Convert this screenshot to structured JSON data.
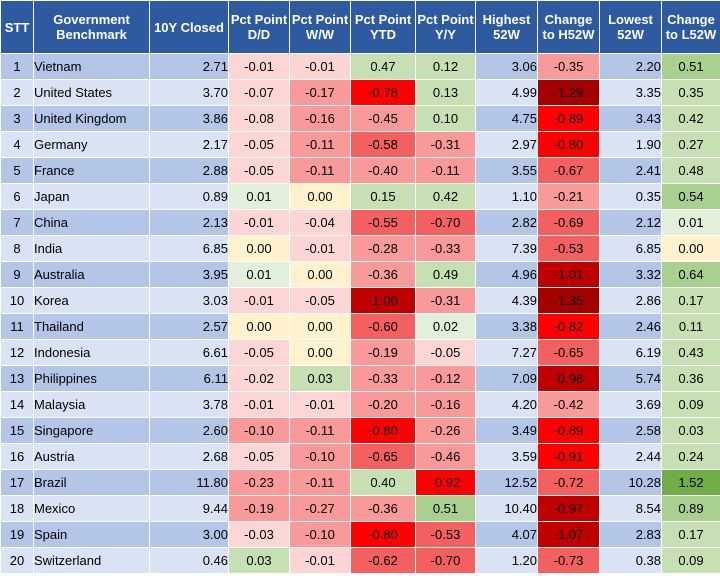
{
  "columns": [
    "STT",
    "Government Benchmark",
    "10Y Closed",
    "Pct Point D/D",
    "Pct Point W/W",
    "Pct Point YTD",
    "Pct Point Y/Y",
    "Highest 52W",
    "Change to H52W",
    "Lowest 52W",
    "Change to L52W"
  ],
  "rows": [
    {
      "stt": "1",
      "name": "Vietnam",
      "closed": "2.71",
      "dd": "-0.01",
      "ww": "-0.01",
      "ytd": "0.47",
      "yy": "0.12",
      "h52": "3.06",
      "ch52": "-0.35",
      "l52": "2.20",
      "cl52": "0.51"
    },
    {
      "stt": "2",
      "name": "United States",
      "closed": "3.70",
      "dd": "-0.07",
      "ww": "-0.17",
      "ytd": "-0.78",
      "yy": "0.13",
      "h52": "4.99",
      "ch52": "-1.29",
      "l52": "3.35",
      "cl52": "0.35"
    },
    {
      "stt": "3",
      "name": "United Kingdom",
      "closed": "3.86",
      "dd": "-0.08",
      "ww": "-0.16",
      "ytd": "-0.45",
      "yy": "0.10",
      "h52": "4.75",
      "ch52": "-0.89",
      "l52": "3.43",
      "cl52": "0.42"
    },
    {
      "stt": "4",
      "name": "Germany",
      "closed": "2.17",
      "dd": "-0.05",
      "ww": "-0.11",
      "ytd": "-0.58",
      "yy": "-0.31",
      "h52": "2.97",
      "ch52": "-0.80",
      "l52": "1.90",
      "cl52": "0.27"
    },
    {
      "stt": "5",
      "name": "France",
      "closed": "2.88",
      "dd": "-0.05",
      "ww": "-0.11",
      "ytd": "-0.40",
      "yy": "-0.11",
      "h52": "3.55",
      "ch52": "-0.67",
      "l52": "2.41",
      "cl52": "0.48"
    },
    {
      "stt": "6",
      "name": "Japan",
      "closed": "0.89",
      "dd": "0.01",
      "ww": "0.00",
      "ytd": "0.15",
      "yy": "0.42",
      "h52": "1.10",
      "ch52": "-0.21",
      "l52": "0.35",
      "cl52": "0.54"
    },
    {
      "stt": "7",
      "name": "China",
      "closed": "2.13",
      "dd": "-0.01",
      "ww": "-0.04",
      "ytd": "-0.55",
      "yy": "-0.70",
      "h52": "2.82",
      "ch52": "-0.69",
      "l52": "2.12",
      "cl52": "0.01"
    },
    {
      "stt": "8",
      "name": "India",
      "closed": "6.85",
      "dd": "0.00",
      "ww": "-0.01",
      "ytd": "-0.28",
      "yy": "-0.33",
      "h52": "7.39",
      "ch52": "-0.53",
      "l52": "6.85",
      "cl52": "0.00"
    },
    {
      "stt": "9",
      "name": "Australia",
      "closed": "3.95",
      "dd": "0.01",
      "ww": "0.00",
      "ytd": "-0.36",
      "yy": "0.49",
      "h52": "4.96",
      "ch52": "-1.01",
      "l52": "3.32",
      "cl52": "0.64"
    },
    {
      "stt": "10",
      "name": "Korea",
      "closed": "3.03",
      "dd": "-0.01",
      "ww": "-0.05",
      "ytd": "-1.00",
      "yy": "-0.31",
      "h52": "4.39",
      "ch52": "-1.35",
      "l52": "2.86",
      "cl52": "0.17"
    },
    {
      "stt": "11",
      "name": "Thailand",
      "closed": "2.57",
      "dd": "0.00",
      "ww": "0.00",
      "ytd": "-0.60",
      "yy": "0.02",
      "h52": "3.38",
      "ch52": "-0.82",
      "l52": "2.46",
      "cl52": "0.11"
    },
    {
      "stt": "12",
      "name": "Indonesia",
      "closed": "6.61",
      "dd": "-0.05",
      "ww": "0.00",
      "ytd": "-0.19",
      "yy": "-0.05",
      "h52": "7.27",
      "ch52": "-0.65",
      "l52": "6.19",
      "cl52": "0.43"
    },
    {
      "stt": "13",
      "name": "Philippines",
      "closed": "6.11",
      "dd": "-0.02",
      "ww": "0.03",
      "ytd": "-0.33",
      "yy": "-0.12",
      "h52": "7.09",
      "ch52": "-0.98",
      "l52": "5.74",
      "cl52": "0.36"
    },
    {
      "stt": "14",
      "name": "Malaysia",
      "closed": "3.78",
      "dd": "-0.01",
      "ww": "-0.01",
      "ytd": "-0.20",
      "yy": "-0.16",
      "h52": "4.20",
      "ch52": "-0.42",
      "l52": "3.69",
      "cl52": "0.09"
    },
    {
      "stt": "15",
      "name": "Singapore",
      "closed": "2.60",
      "dd": "-0.10",
      "ww": "-0.11",
      "ytd": "-0.80",
      "yy": "-0.26",
      "h52": "3.49",
      "ch52": "-0.89",
      "l52": "2.58",
      "cl52": "0.03"
    },
    {
      "stt": "16",
      "name": "Austria",
      "closed": "2.68",
      "dd": "-0.05",
      "ww": "-0.10",
      "ytd": "-0.65",
      "yy": "-0.46",
      "h52": "3.59",
      "ch52": "-0.91",
      "l52": "2.44",
      "cl52": "0.24"
    },
    {
      "stt": "17",
      "name": "Brazil",
      "closed": "11.80",
      "dd": "-0.23",
      "ww": "-0.11",
      "ytd": "0.40",
      "yy": "-0.92",
      "h52": "12.52",
      "ch52": "-0.72",
      "l52": "10.28",
      "cl52": "1.52"
    },
    {
      "stt": "18",
      "name": "Mexico",
      "closed": "9.44",
      "dd": "-0.19",
      "ww": "-0.27",
      "ytd": "-0.36",
      "yy": "0.51",
      "h52": "10.40",
      "ch52": "-0.97",
      "l52": "8.54",
      "cl52": "0.89"
    },
    {
      "stt": "19",
      "name": "Spain",
      "closed": "3.00",
      "dd": "-0.03",
      "ww": "-0.10",
      "ytd": "-0.80",
      "yy": "-0.53",
      "h52": "4.07",
      "ch52": "-1.07",
      "l52": "2.83",
      "cl52": "0.17"
    },
    {
      "stt": "20",
      "name": "Switzerland",
      "closed": "0.46",
      "dd": "0.03",
      "ww": "-0.01",
      "ytd": "-0.62",
      "yy": "-0.70",
      "h52": "1.20",
      "ch52": "-0.73",
      "l52": "0.38",
      "cl52": "0.09"
    }
  ],
  "colors": {
    "header_bg": "#2e5aa0",
    "header_text": "#ffffff",
    "row_odd": "#b4c6e7",
    "row_even": "#dae3f3",
    "neg_light": "#fcd5d5",
    "neg_mid": "#f99a9a",
    "neg_strong": "#f26060",
    "neg_bright": "#ff0000",
    "neg_dark": "#c00000",
    "neg_darkest": "#a50000",
    "zero": "#fff2cc",
    "pos_light": "#e2efda",
    "pos_mid": "#c6e0b4",
    "pos_strong": "#a9d08e",
    "pos_bright": "#70ad47"
  }
}
